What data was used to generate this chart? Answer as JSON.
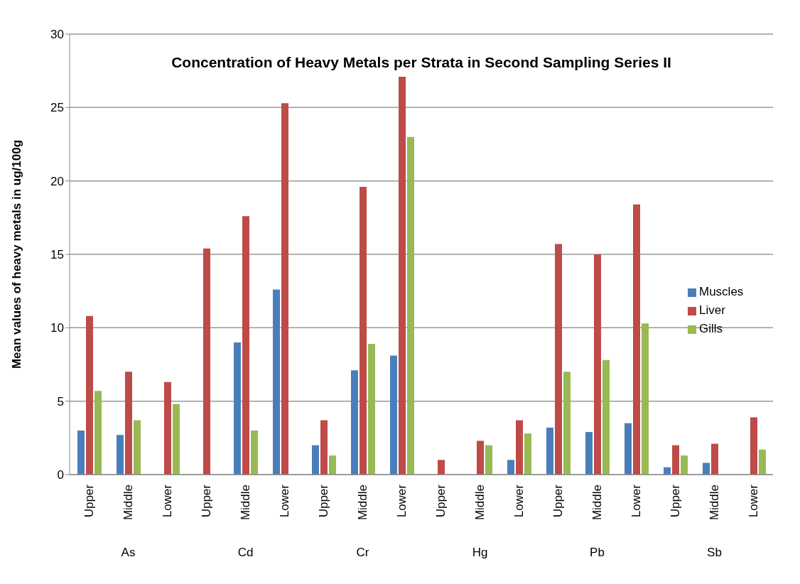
{
  "chart_data": {
    "type": "bar",
    "title": "Concentration of Heavy Metals per Strata in Second Sampling Series II",
    "ylabel": "Mean values of heavy metals in ug/100g",
    "categories": [
      "Upper",
      "Middle",
      "Lower",
      "Upper",
      "Middle",
      "Lower",
      "Upper",
      "Middle",
      "Lower",
      "Upper",
      "Middle",
      "Lower",
      "Upper",
      "Middle",
      "Lower",
      "Upper",
      "Middle",
      "Lower"
    ],
    "annotations": [
      "As",
      "Cd",
      "Cr",
      "Hg",
      "Pb",
      "Sb"
    ],
    "series": [
      {
        "name": "Muscles",
        "color": "#4a7ebb",
        "values": [
          3.0,
          2.7,
          0,
          0,
          9.0,
          12.6,
          2.0,
          7.1,
          8.1,
          0,
          0,
          1.0,
          3.2,
          2.9,
          3.5,
          0.5,
          0.8,
          0
        ]
      },
      {
        "name": "Liver",
        "color": "#be4b48",
        "values": [
          10.8,
          7.0,
          6.3,
          15.4,
          17.6,
          25.3,
          3.7,
          19.6,
          27.1,
          1.0,
          2.3,
          3.7,
          15.7,
          15.0,
          18.4,
          2.0,
          2.1,
          3.9
        ]
      },
      {
        "name": "Gills",
        "color": "#98b954",
        "values": [
          5.7,
          3.7,
          4.8,
          0,
          3.0,
          0,
          1.3,
          8.9,
          23.0,
          0,
          2.0,
          2.8,
          7.0,
          7.8,
          10.3,
          1.3,
          0,
          1.7
        ]
      }
    ],
    "ylim": [
      0,
      30
    ],
    "yticks": [
      0,
      5,
      10,
      15,
      20,
      25,
      30
    ],
    "grid": "y",
    "legend": "right"
  }
}
